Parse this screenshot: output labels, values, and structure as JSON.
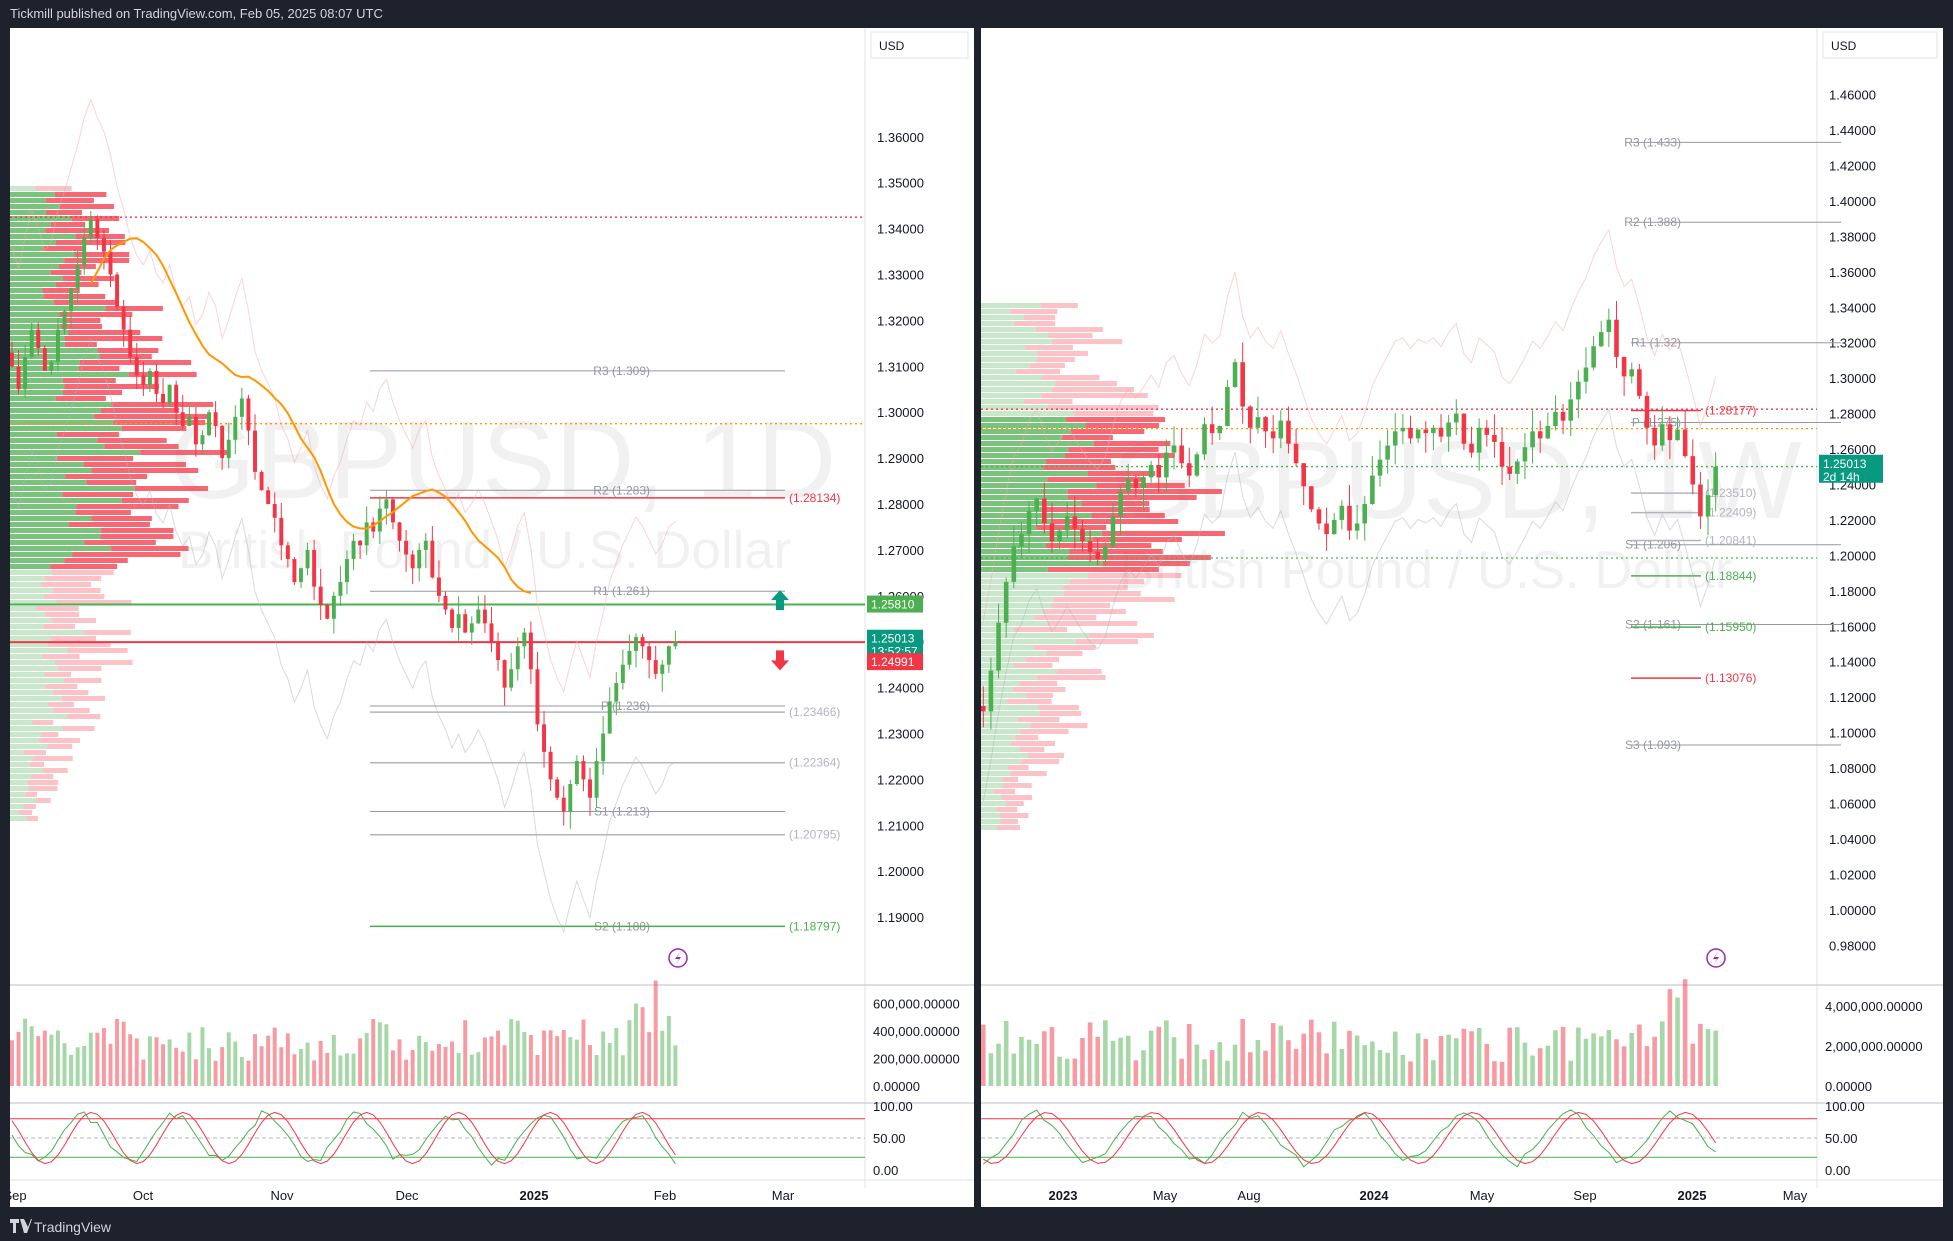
{
  "header": {
    "publisher": "Tickmill published on TradingView.com, Feb 05, 2025 08:07 UTC"
  },
  "footer": {
    "brand": "TradingView"
  },
  "colors": {
    "up": "#4caf50",
    "down": "#f23645",
    "sma": "#ff9800",
    "grid_line": "#9598a1"
  },
  "chart_data": [
    {
      "type": "candlestick",
      "symbol_watermark": "GBPUSD, 1D",
      "description_watermark": "British Pound / U.S. Dollar",
      "currency": "USD",
      "price_ticks": [
        "1.36000",
        "1.35000",
        "1.34000",
        "1.33000",
        "1.32000",
        "1.31000",
        "1.30000",
        "1.29000",
        "1.28000",
        "1.27000",
        "1.26000",
        "1.25000",
        "1.24000",
        "1.23000",
        "1.22000",
        "1.21000",
        "1.20000",
        "1.19000"
      ],
      "x_ticks": [
        "Sep",
        "Oct",
        "Nov",
        "Dec",
        "2025",
        "Feb",
        "Mar"
      ],
      "last_price": "1.25013",
      "countdown": "13:52:57",
      "price_labels": [
        {
          "text": "1.25810",
          "kind": "green"
        },
        {
          "text": "1.24991",
          "kind": "red"
        }
      ],
      "pivot_levels": [
        {
          "label": "R3 (1.309)",
          "value": 1.309
        },
        {
          "label": "R2 (1.283)",
          "value": 1.283
        },
        {
          "label": "R1 (1.261)",
          "value": 1.261
        },
        {
          "label": "P (1.236)",
          "value": 1.236
        },
        {
          "label": "S1 (1.213)",
          "value": 1.213
        },
        {
          "label": "S2 (1.188)",
          "value": 1.188
        }
      ],
      "level_lines": [
        {
          "label": "(1.28134)",
          "value": 1.28134,
          "color": "red"
        },
        {
          "label": "(1.23466)",
          "value": 1.23466,
          "color": "grey"
        },
        {
          "label": "(1.22364)",
          "value": 1.22364,
          "color": "grey"
        },
        {
          "label": "(1.20795)",
          "value": 1.20795,
          "color": "grey"
        },
        {
          "label": "(1.18797)",
          "value": 1.18797,
          "color": "green"
        }
      ],
      "horizontal_lines": [
        {
          "value": 1.3425,
          "style": "dotted",
          "color": "red"
        },
        {
          "value": 1.2975,
          "style": "dotted",
          "color": "orange"
        },
        {
          "value": 1.2581,
          "style": "solid",
          "color": "green"
        },
        {
          "value": 1.2499,
          "style": "solid",
          "color": "red"
        }
      ],
      "price_range": [
        1.18,
        1.375
      ],
      "ohlc_close_approx": [
        1.31,
        1.305,
        1.312,
        1.318,
        1.314,
        1.309,
        1.311,
        1.318,
        1.322,
        1.327,
        1.332,
        1.338,
        1.342,
        1.338,
        1.335,
        1.33,
        1.323,
        1.318,
        1.312,
        1.308,
        1.306,
        1.309,
        1.304,
        1.302,
        1.306,
        1.3,
        1.297,
        1.299,
        1.293,
        1.295,
        1.3,
        1.297,
        1.29,
        1.294,
        1.299,
        1.303,
        1.296,
        1.287,
        1.283,
        1.28,
        1.277,
        1.271,
        1.268,
        1.263,
        1.266,
        1.27,
        1.262,
        1.258,
        1.255,
        1.26,
        1.263,
        1.268,
        1.272,
        1.271,
        1.276,
        1.274,
        1.279,
        1.281,
        1.276,
        1.272,
        1.269,
        1.266,
        1.27,
        1.272,
        1.264,
        1.26,
        1.257,
        1.253,
        1.256,
        1.252,
        1.254,
        1.257,
        1.254,
        1.25,
        1.246,
        1.24,
        1.244,
        1.249,
        1.252,
        1.244,
        1.232,
        1.226,
        1.22,
        1.216,
        1.213,
        1.219,
        1.224,
        1.22,
        1.216,
        1.224,
        1.23,
        1.237,
        1.241,
        1.245,
        1.248,
        1.251,
        1.249,
        1.246,
        1.243,
        1.245,
        1.249,
        1.25
      ]
    },
    {
      "type": "candlestick",
      "symbol_watermark": "GBPUSD, 1W",
      "description_watermark": "British Pound / U.S. Dollar",
      "currency": "USD",
      "price_ticks": [
        "1.46000",
        "1.44000",
        "1.42000",
        "1.40000",
        "1.38000",
        "1.36000",
        "1.34000",
        "1.32000",
        "1.30000",
        "1.28000",
        "1.26000",
        "1.24000",
        "1.22000",
        "1.20000",
        "1.18000",
        "1.16000",
        "1.14000",
        "1.12000",
        "1.10000",
        "1.08000",
        "1.06000",
        "1.04000",
        "1.02000",
        "1.00000",
        "0.98000"
      ],
      "x_ticks": [
        "2023",
        "May",
        "Aug",
        "2024",
        "May",
        "Sep",
        "2025",
        "May"
      ],
      "last_price": "1.25013",
      "countdown": "2d 14h",
      "pivot_levels": [
        {
          "label": "R3 (1.433)",
          "value": 1.433
        },
        {
          "label": "R2 (1.388)",
          "value": 1.388
        },
        {
          "label": "R1 (1.32)",
          "value": 1.32
        },
        {
          "label": "P (1.275)",
          "value": 1.275
        },
        {
          "label": "S1 (1.206)",
          "value": 1.206
        },
        {
          "label": "S2 (1.161)",
          "value": 1.161
        },
        {
          "label": "S3 (1.093)",
          "value": 1.093
        }
      ],
      "level_lines": [
        {
          "label": "(1.28177)",
          "value": 1.28177,
          "color": "red"
        },
        {
          "label": "(1.23510)",
          "value": 1.2351,
          "color": "grey"
        },
        {
          "label": "(1.22409)",
          "value": 1.22409,
          "color": "grey"
        },
        {
          "label": "(1.20841)",
          "value": 1.20841,
          "color": "grey"
        },
        {
          "label": "(1.18844)",
          "value": 1.18844,
          "color": "green"
        },
        {
          "label": "(1.15950)",
          "value": 1.1595,
          "color": "green"
        },
        {
          "label": "(1.13076)",
          "value": 1.13076,
          "color": "red"
        }
      ],
      "horizontal_lines": [
        {
          "value": 1.2825,
          "style": "dotted",
          "color": "red"
        },
        {
          "value": 1.2715,
          "style": "dotted",
          "color": "orange"
        },
        {
          "value": 1.2501,
          "style": "dotted",
          "color": "green"
        },
        {
          "value": 1.1985,
          "style": "dotted",
          "color": "green"
        }
      ],
      "price_range": [
        0.97,
        1.475
      ],
      "ohlc_close_approx": [
        1.112,
        1.135,
        1.162,
        1.185,
        1.205,
        1.212,
        1.225,
        1.232,
        1.218,
        1.208,
        1.214,
        1.222,
        1.215,
        1.208,
        1.202,
        1.198,
        1.205,
        1.222,
        1.236,
        1.243,
        1.238,
        1.244,
        1.251,
        1.244,
        1.258,
        1.262,
        1.252,
        1.245,
        1.257,
        1.274,
        1.269,
        1.273,
        1.295,
        1.309,
        1.284,
        1.272,
        1.278,
        1.27,
        1.266,
        1.276,
        1.263,
        1.252,
        1.239,
        1.226,
        1.218,
        1.212,
        1.22,
        1.228,
        1.214,
        1.218,
        1.229,
        1.245,
        1.254,
        1.262,
        1.27,
        1.272,
        1.266,
        1.271,
        1.269,
        1.272,
        1.267,
        1.275,
        1.28,
        1.263,
        1.258,
        1.272,
        1.268,
        1.264,
        1.25,
        1.246,
        1.253,
        1.261,
        1.27,
        1.266,
        1.273,
        1.281,
        1.276,
        1.288,
        1.298,
        1.306,
        1.318,
        1.326,
        1.333,
        1.312,
        1.301,
        1.305,
        1.29,
        1.272,
        1.262,
        1.274,
        1.265,
        1.271,
        1.256,
        1.24,
        1.222,
        1.234,
        1.25
      ]
    }
  ],
  "volume": [
    {
      "ticks": [
        "600,000.00000",
        "400,000.00000",
        "200,000.00000",
        "0.00000"
      ],
      "max": 700000
    },
    {
      "ticks": [
        "4,000,000.00000",
        "2,000,000.00000",
        "0.00000"
      ],
      "max": 4800000
    }
  ],
  "oscillator": {
    "ticks": [
      "100.00",
      "50.00",
      "0.00"
    ]
  }
}
